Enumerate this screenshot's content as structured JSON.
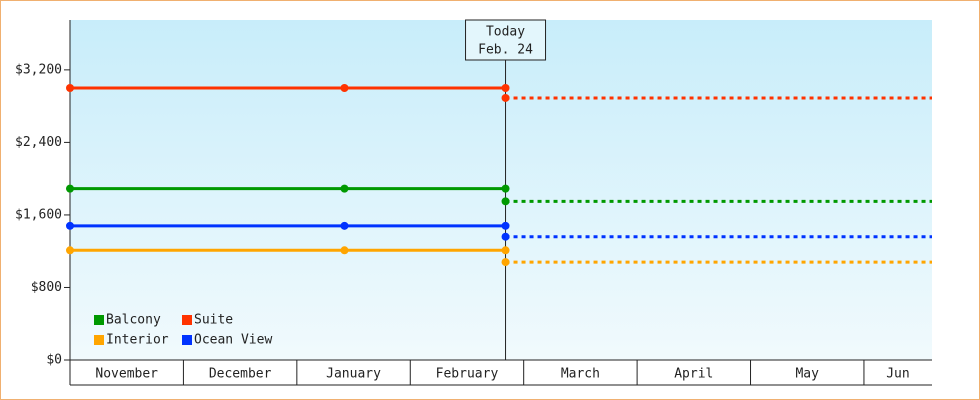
{
  "chart_data": {
    "type": "line",
    "categories": [
      "November",
      "December",
      "January",
      "February",
      "March",
      "April",
      "May",
      "Jun"
    ],
    "xlim": [
      0,
      7.6
    ],
    "x": [
      0,
      2.42,
      3.84
    ],
    "forecast_x": [
      3.84,
      7.6
    ],
    "ylim": [
      0,
      3750
    ],
    "yticks": [
      {
        "value": 0,
        "label": "$0"
      },
      {
        "value": 800,
        "label": "$800"
      },
      {
        "value": 1600,
        "label": "$1,600"
      },
      {
        "value": 2400,
        "label": "$2,400"
      },
      {
        "value": 3200,
        "label": "$3,200"
      }
    ],
    "annotation": {
      "x": 3.84,
      "lines": [
        "Today",
        "Feb. 24"
      ]
    },
    "legend": "bottom-left",
    "series": [
      {
        "name": "Balcony",
        "color": "#009900",
        "values": [
          1890,
          1890,
          1890
        ],
        "forecast_values": [
          1750,
          1750
        ]
      },
      {
        "name": "Suite",
        "color": "#ff3300",
        "values": [
          3000,
          3000,
          3000
        ],
        "forecast_values": [
          2890,
          2890
        ]
      },
      {
        "name": "Interior",
        "color": "#ffa500",
        "values": [
          1210,
          1210,
          1210
        ],
        "forecast_values": [
          1080,
          1080
        ]
      },
      {
        "name": "Ocean View",
        "color": "#0033ff",
        "values": [
          1480,
          1480,
          1480
        ],
        "forecast_values": [
          1360,
          1360
        ]
      }
    ]
  }
}
